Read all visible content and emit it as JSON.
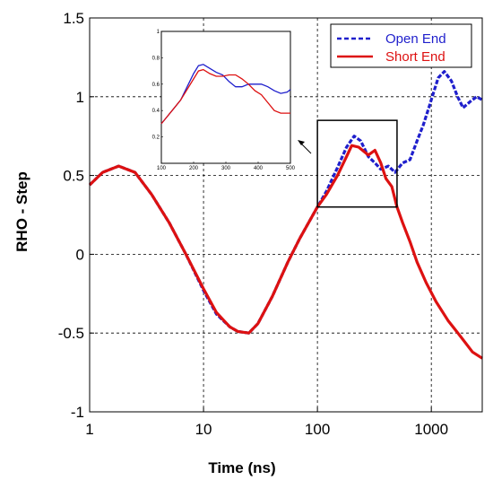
{
  "chart_data": {
    "type": "line",
    "xlabel": "Time (ns)",
    "ylabel": "RHO - Step",
    "xscale": "log",
    "xlim": [
      1,
      2800
    ],
    "ylim": [
      -1,
      1.5
    ],
    "xticks": [
      1,
      10,
      100,
      1000
    ],
    "xtick_labels": [
      "1",
      "10",
      "100",
      "1000"
    ],
    "yticks": [
      -1,
      -0.5,
      0,
      0.5,
      1,
      1.5
    ],
    "ytick_labels": [
      "-1",
      "-0.5",
      "0",
      "0.5",
      "1",
      "1.5"
    ],
    "grid": true,
    "legend_position": "top-right",
    "series": [
      {
        "name": "Open End",
        "color": "#1f1fcc",
        "style": "dashed",
        "x": [
          1,
          1.3,
          1.8,
          2.5,
          3.5,
          5,
          7,
          10,
          13,
          17,
          20,
          25,
          30,
          40,
          55,
          70,
          100,
          120,
          150,
          180,
          210,
          240,
          280,
          320,
          360,
          420,
          480,
          560,
          650,
          750,
          850,
          950,
          1050,
          1150,
          1300,
          1500,
          1700,
          1900,
          2200,
          2500,
          2800
        ],
        "y": [
          0.44,
          0.52,
          0.56,
          0.52,
          0.38,
          0.2,
          0.0,
          -0.23,
          -0.38,
          -0.46,
          -0.49,
          -0.5,
          -0.44,
          -0.27,
          -0.05,
          0.1,
          0.3,
          0.4,
          0.55,
          0.68,
          0.75,
          0.72,
          0.62,
          0.58,
          0.54,
          0.56,
          0.52,
          0.58,
          0.6,
          0.72,
          0.82,
          0.93,
          1.03,
          1.12,
          1.16,
          1.1,
          1.0,
          0.93,
          0.97,
          1.0,
          0.98
        ]
      },
      {
        "name": "Short End",
        "color": "#dd1111",
        "style": "solid",
        "x": [
          1,
          1.3,
          1.8,
          2.5,
          3.5,
          5,
          7,
          10,
          13,
          17,
          20,
          25,
          30,
          40,
          55,
          70,
          100,
          120,
          150,
          180,
          200,
          230,
          280,
          320,
          360,
          400,
          450,
          500,
          560,
          650,
          750,
          900,
          1100,
          1400,
          1800,
          2300,
          2800
        ],
        "y": [
          0.44,
          0.52,
          0.56,
          0.52,
          0.38,
          0.2,
          0.0,
          -0.22,
          -0.37,
          -0.46,
          -0.49,
          -0.5,
          -0.44,
          -0.27,
          -0.05,
          0.1,
          0.3,
          0.38,
          0.5,
          0.62,
          0.69,
          0.68,
          0.63,
          0.66,
          0.58,
          0.48,
          0.43,
          0.3,
          0.2,
          0.08,
          -0.05,
          -0.18,
          -0.3,
          -0.42,
          -0.52,
          -0.62,
          -0.66
        ]
      }
    ],
    "inset": {
      "type": "line",
      "xlim": [
        100,
        500
      ],
      "ylim": [
        0,
        1
      ],
      "xticks": [
        100,
        200,
        300,
        400,
        500
      ],
      "xtick_labels": [
        "100",
        "200",
        "300",
        "400",
        "500"
      ],
      "yticks": [
        0.2,
        0.4,
        0.6,
        0.8,
        1
      ],
      "ytick_labels": [
        "0.2",
        "0.4",
        "0.6",
        "0.8",
        "1"
      ],
      "series": [
        {
          "name": "Open End",
          "color": "#1f1fcc",
          "x": [
            100,
            120,
            140,
            160,
            180,
            200,
            215,
            230,
            250,
            270,
            290,
            310,
            330,
            350,
            370,
            390,
            410,
            430,
            450,
            470,
            490,
            500
          ],
          "y": [
            0.3,
            0.36,
            0.42,
            0.48,
            0.58,
            0.68,
            0.74,
            0.75,
            0.72,
            0.69,
            0.67,
            0.62,
            0.58,
            0.58,
            0.6,
            0.6,
            0.6,
            0.58,
            0.55,
            0.53,
            0.54,
            0.56
          ]
        },
        {
          "name": "Short End",
          "color": "#dd1111",
          "x": [
            100,
            120,
            140,
            160,
            180,
            200,
            215,
            230,
            250,
            270,
            290,
            310,
            330,
            350,
            370,
            390,
            410,
            430,
            450,
            470,
            490,
            500
          ],
          "y": [
            0.3,
            0.36,
            0.42,
            0.48,
            0.56,
            0.64,
            0.7,
            0.71,
            0.68,
            0.66,
            0.66,
            0.67,
            0.67,
            0.64,
            0.6,
            0.55,
            0.52,
            0.46,
            0.4,
            0.38,
            0.38,
            0.38
          ]
        }
      ]
    }
  }
}
